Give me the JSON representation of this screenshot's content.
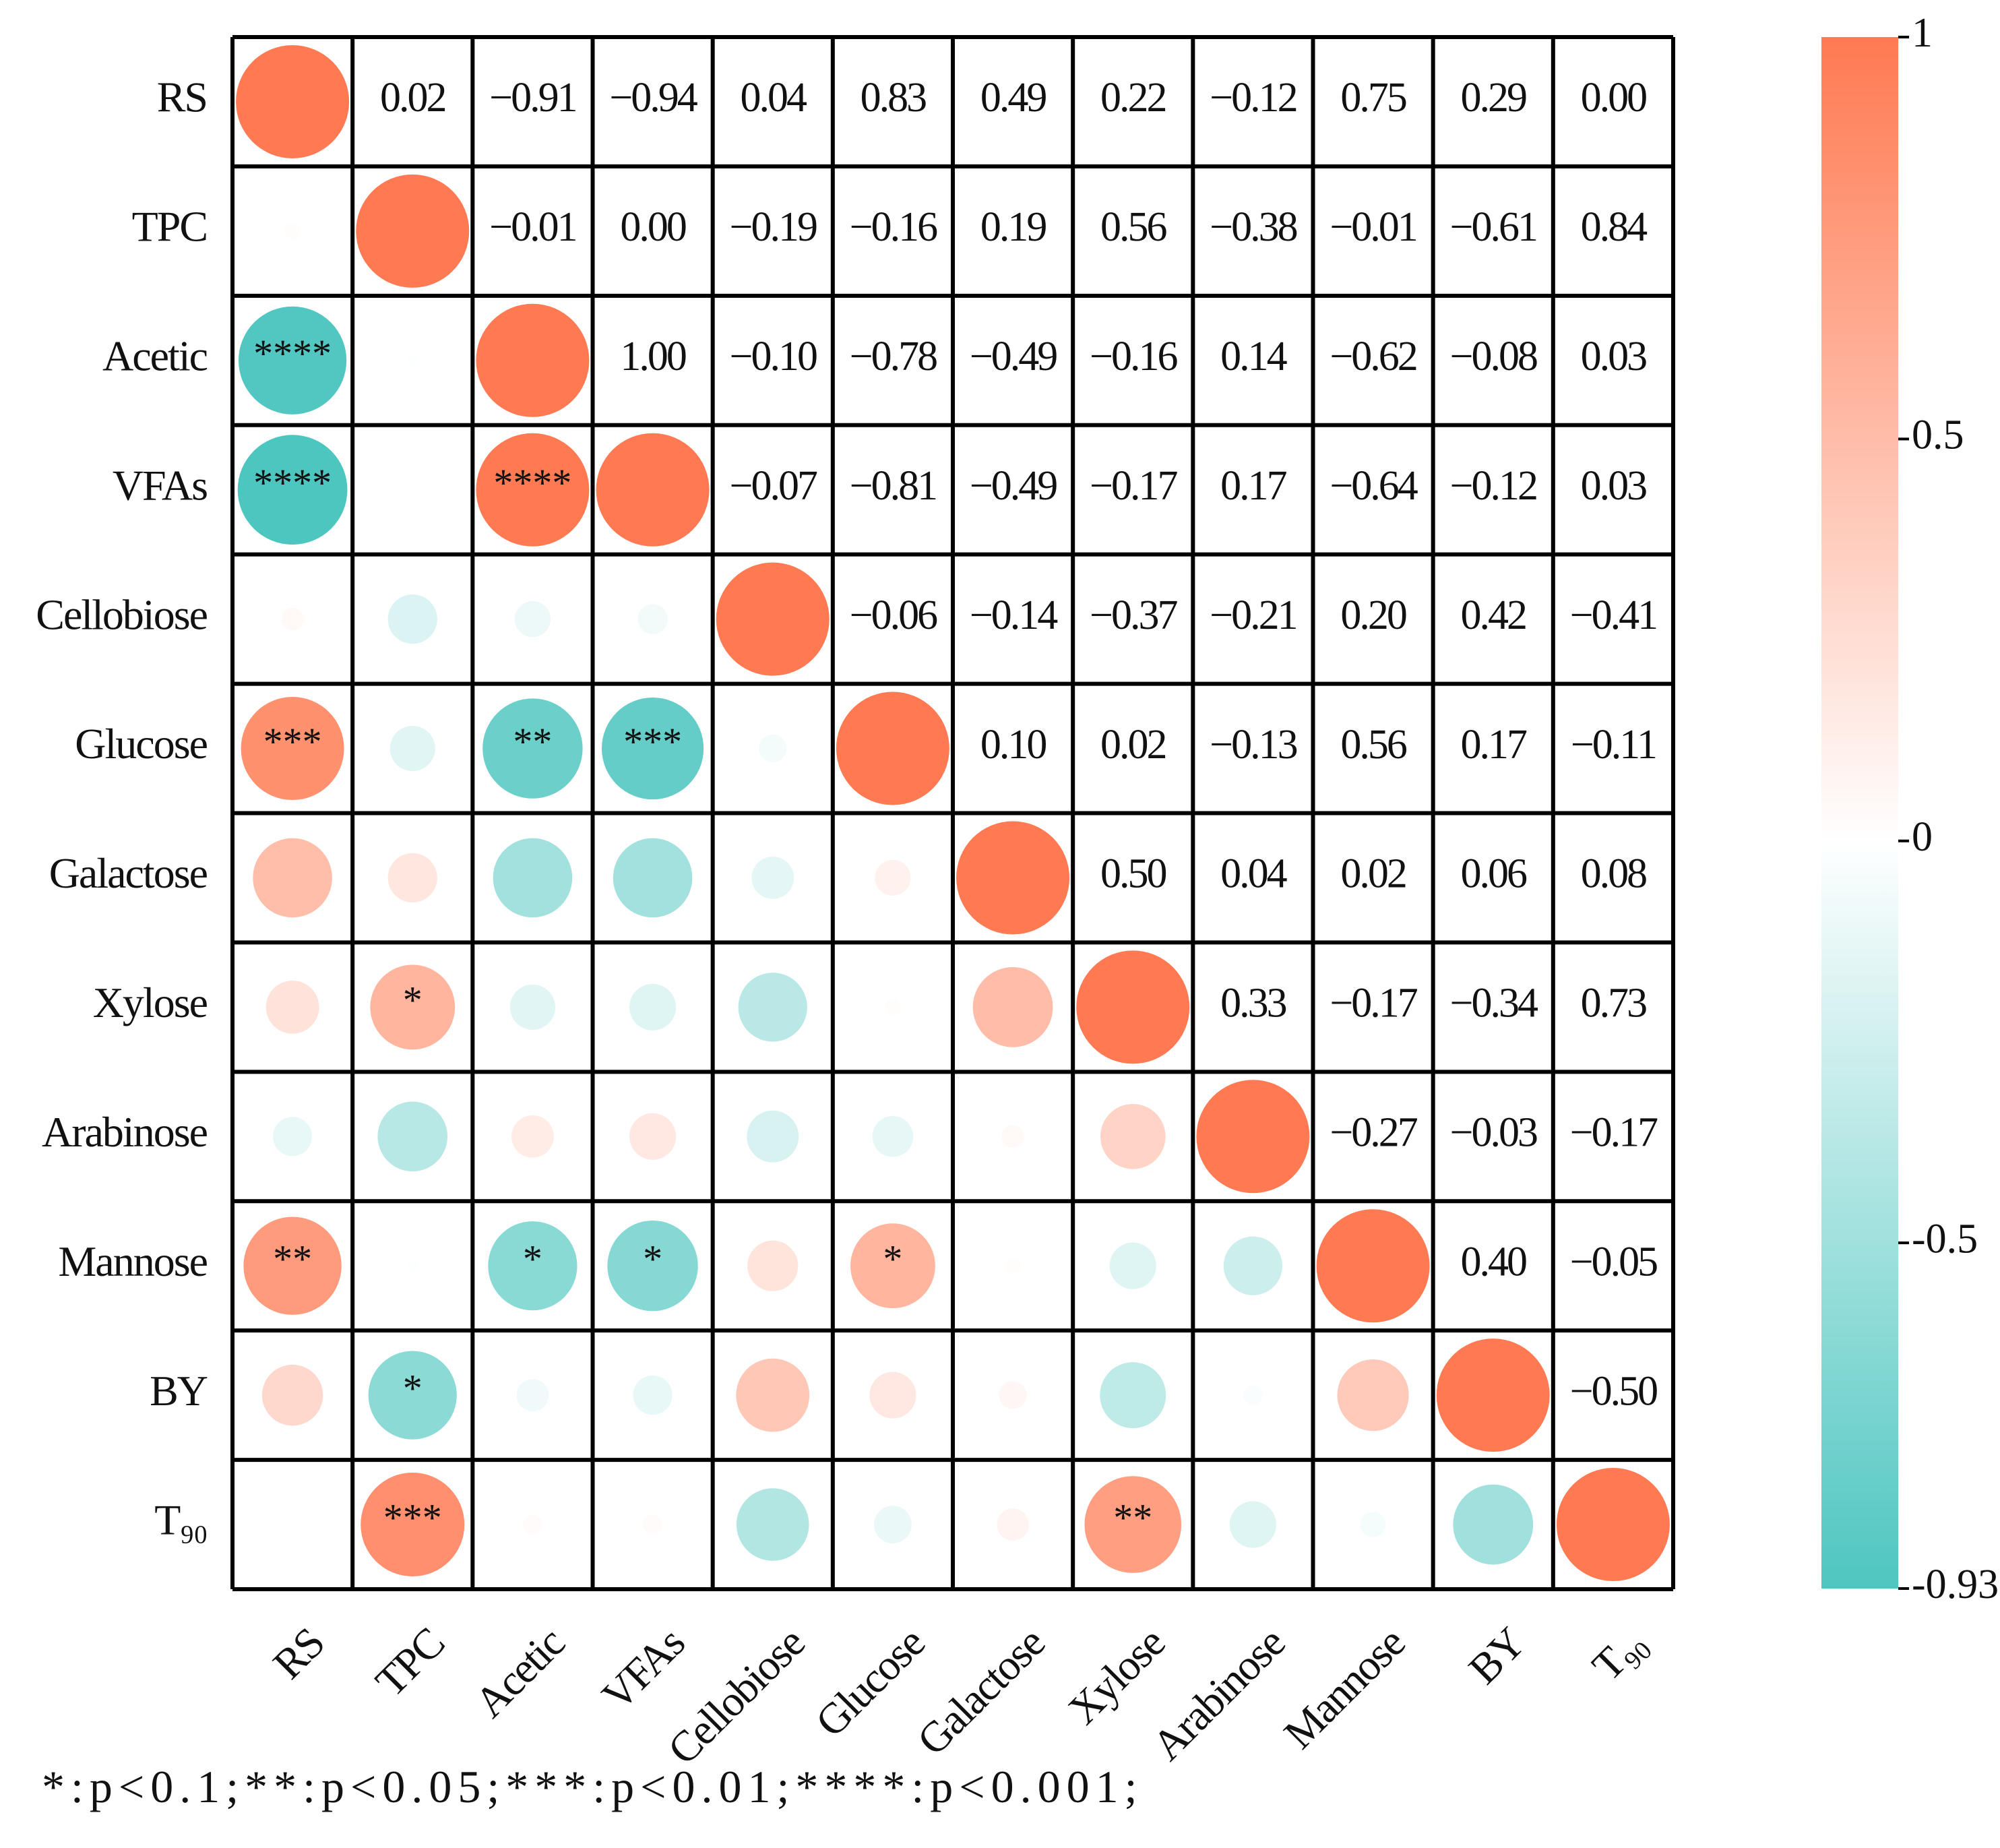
{
  "chart_data": {
    "type": "heatmap",
    "title": "",
    "variables": [
      "RS",
      "TPC",
      "Acetic",
      "VFAs",
      "Cellobiose",
      "Glucose",
      "Galactose",
      "Xylose",
      "Arabinose",
      "Mannose",
      "BY",
      "T₉₀"
    ],
    "correlation_matrix": [
      [
        1.0,
        0.02,
        -0.91,
        -0.94,
        0.04,
        0.83,
        0.49,
        0.22,
        -0.12,
        0.75,
        0.29,
        0.0
      ],
      [
        0.02,
        1.0,
        -0.01,
        0.0,
        -0.19,
        -0.16,
        0.19,
        0.56,
        -0.38,
        -0.01,
        -0.61,
        0.84
      ],
      [
        -0.91,
        -0.01,
        1.0,
        1.0,
        -0.1,
        -0.78,
        -0.49,
        -0.16,
        0.14,
        -0.62,
        -0.08,
        0.03
      ],
      [
        -0.94,
        0.0,
        1.0,
        1.0,
        -0.07,
        -0.81,
        -0.49,
        -0.17,
        0.17,
        -0.64,
        -0.12,
        0.03
      ],
      [
        0.04,
        -0.19,
        -0.1,
        -0.07,
        1.0,
        -0.06,
        -0.14,
        -0.37,
        -0.21,
        0.2,
        0.42,
        -0.41
      ],
      [
        0.83,
        -0.16,
        -0.78,
        -0.81,
        -0.06,
        1.0,
        0.1,
        0.02,
        -0.13,
        0.56,
        0.17,
        -0.11
      ],
      [
        0.49,
        0.19,
        -0.49,
        -0.49,
        -0.14,
        0.1,
        1.0,
        0.5,
        0.04,
        0.02,
        0.06,
        0.08
      ],
      [
        0.22,
        0.56,
        -0.16,
        -0.17,
        -0.37,
        0.02,
        0.5,
        1.0,
        0.33,
        -0.17,
        -0.34,
        0.73
      ],
      [
        -0.12,
        -0.38,
        0.14,
        0.17,
        -0.21,
        -0.13,
        0.04,
        0.33,
        1.0,
        -0.27,
        -0.03,
        -0.17
      ],
      [
        0.75,
        -0.01,
        -0.62,
        -0.64,
        0.2,
        0.56,
        0.02,
        -0.17,
        -0.27,
        1.0,
        0.4,
        -0.05
      ],
      [
        0.29,
        -0.61,
        -0.08,
        -0.12,
        0.42,
        0.17,
        0.06,
        -0.34,
        -0.03,
        0.4,
        1.0,
        -0.5
      ],
      [
        0.0,
        0.84,
        0.03,
        0.03,
        -0.41,
        -0.11,
        0.08,
        0.73,
        -0.17,
        -0.05,
        -0.5,
        1.0
      ]
    ],
    "upper_labels": [
      [
        "",
        "0.02",
        "−0.91",
        "−0.94",
        "0.04",
        "0.83",
        "0.49",
        "0.22",
        "−0.12",
        "0.75",
        "0.29",
        "0.00"
      ],
      [
        "",
        "",
        "−0.01",
        "0.00",
        "−0.19",
        "−0.16",
        "0.19",
        "0.56",
        "−0.38",
        "−0.01",
        "−0.61",
        "0.84"
      ],
      [
        "",
        "",
        "",
        "1.00",
        "−0.10",
        "−0.78",
        "−0.49",
        "−0.16",
        "0.14",
        "−0.62",
        "−0.08",
        "0.03"
      ],
      [
        "",
        "",
        "",
        "",
        "−0.07",
        "−0.81",
        "−0.49",
        "−0.17",
        "0.17",
        "−0.64",
        "−0.12",
        "0.03"
      ],
      [
        "",
        "",
        "",
        "",
        "",
        "−0.06",
        "−0.14",
        "−0.37",
        "−0.21",
        "0.20",
        "0.42",
        "−0.41"
      ],
      [
        "",
        "",
        "",
        "",
        "",
        "",
        "0.10",
        "0.02",
        "−0.13",
        "0.56",
        "0.17",
        "−0.11"
      ],
      [
        "",
        "",
        "",
        "",
        "",
        "",
        "",
        "0.50",
        "0.04",
        "0.02",
        "0.06",
        "0.08"
      ],
      [
        "",
        "",
        "",
        "",
        "",
        "",
        "",
        "",
        "0.33",
        "−0.17",
        "−0.34",
        "0.73"
      ],
      [
        "",
        "",
        "",
        "",
        "",
        "",
        "",
        "",
        "",
        "−0.27",
        "−0.03",
        "−0.17"
      ],
      [
        "",
        "",
        "",
        "",
        "",
        "",
        "",
        "",
        "",
        "",
        "0.40",
        "−0.05"
      ],
      [
        "",
        "",
        "",
        "",
        "",
        "",
        "",
        "",
        "",
        "",
        "",
        "−0.50"
      ],
      [
        "",
        "",
        "",
        "",
        "",
        "",
        "",
        "",
        "",
        "",
        "",
        ""
      ]
    ],
    "significance_marks": [
      {
        "row": 2,
        "col": 0,
        "mark": "****"
      },
      {
        "row": 3,
        "col": 0,
        "mark": "****"
      },
      {
        "row": 3,
        "col": 2,
        "mark": "****"
      },
      {
        "row": 5,
        "col": 0,
        "mark": "***"
      },
      {
        "row": 5,
        "col": 2,
        "mark": "**"
      },
      {
        "row": 5,
        "col": 3,
        "mark": "***"
      },
      {
        "row": 7,
        "col": 1,
        "mark": "*"
      },
      {
        "row": 9,
        "col": 0,
        "mark": "**"
      },
      {
        "row": 9,
        "col": 2,
        "mark": "*"
      },
      {
        "row": 9,
        "col": 3,
        "mark": "*"
      },
      {
        "row": 9,
        "col": 5,
        "mark": "*"
      },
      {
        "row": 10,
        "col": 1,
        "mark": "*"
      },
      {
        "row": 11,
        "col": 1,
        "mark": "***"
      },
      {
        "row": 11,
        "col": 7,
        "mark": "**"
      }
    ],
    "colorbar": {
      "min": -0.93,
      "max": 1,
      "ticks": [
        1,
        0.5,
        0,
        -0.5,
        -0.93
      ],
      "tick_labels": [
        "1",
        "0.5",
        "0",
        "-0.5",
        "-0.93"
      ],
      "colors": {
        "high": "#ff7a52",
        "mid": "#ffffff",
        "low": "#4ec6c0"
      }
    },
    "footnote": "*:p<0.1;**:p<0.05;***:p<0.01;****:p<0.001;"
  }
}
